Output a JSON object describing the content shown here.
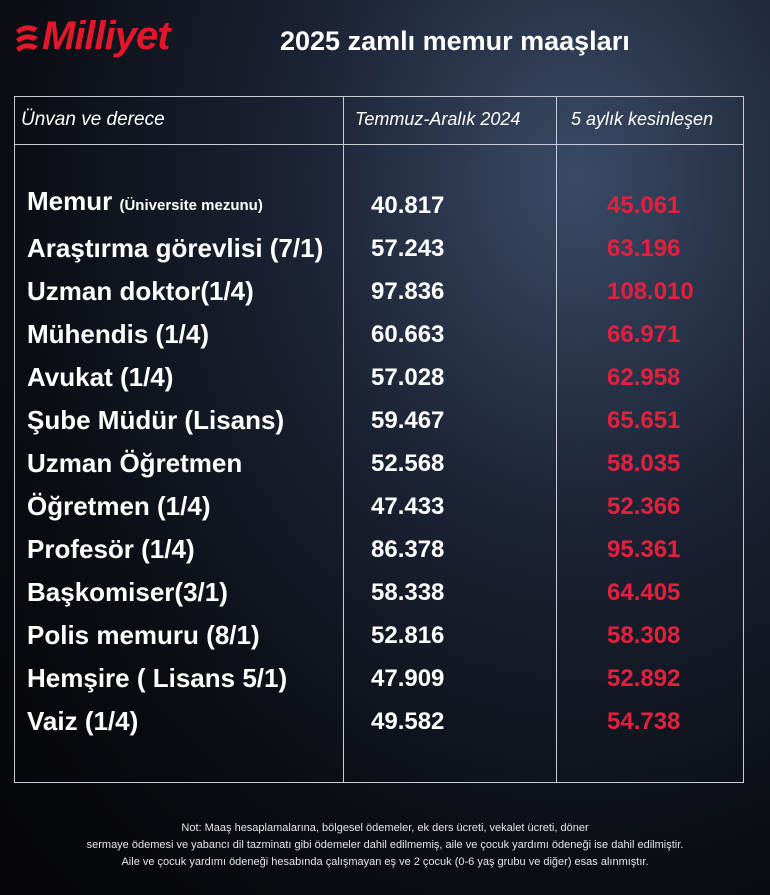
{
  "header": {
    "logo": "Milliyet",
    "title": "2025 zamlı memur maaşları"
  },
  "table": {
    "columns": [
      "Ünvan ve derece",
      "Temmuz-Aralık 2024",
      "5 aylık kesinleşen"
    ],
    "rows": [
      {
        "name": "Memur",
        "detail": "(Üniversite mezunu)",
        "old": "40.817",
        "new": "45.061"
      },
      {
        "name": "Araştırma görevlisi (7/1)",
        "old": "57.243",
        "new": "63.196"
      },
      {
        "name": "Uzman doktor(1/4)",
        "old": "97.836",
        "new": "108.010"
      },
      {
        "name": "Mühendis (1/4)",
        "old": "60.663",
        "new": "66.971"
      },
      {
        "name": "Avukat (1/4)",
        "old": "57.028",
        "new": "62.958"
      },
      {
        "name": "Şube Müdür (Lisans)",
        "old": "59.467",
        "new": "65.651"
      },
      {
        "name": "Uzman Öğretmen",
        "old": "52.568",
        "new": "58.035"
      },
      {
        "name": "Öğretmen (1/4)",
        "old": "47.433",
        "new": "52.366"
      },
      {
        "name": "Profesör (1/4)",
        "old": "86.378",
        "new": "95.361"
      },
      {
        "name": "Başkomiser(3/1)",
        "old": "58.338",
        "new": "64.405"
      },
      {
        "name": "Polis memuru (8/1)",
        "old": "52.816",
        "new": "58.308"
      },
      {
        "name": "Hemşire ( Lisans 5/1)",
        "old": "47.909",
        "new": "52.892"
      },
      {
        "name": "Vaiz (1/4)",
        "old": "49.582",
        "new": "54.738"
      }
    ]
  },
  "notes": [
    "Not: Maaş hesaplamalarına, bölgesel ödemeler, ek ders ücreti, vekalet ücreti, döner",
    "sermaye ödemesi ve yabancı dil tazminatı gibi ödemeler dahil edilmemiş, aile ve çocuk yardımı ödeneği ise dahil edilmiştir.",
    "Aile ve çocuk yardımı ödeneği hesabında çalışmayan eş ve 2 çocuk (0-6 yaş grubu ve diğer) esas alınmıştır."
  ]
}
